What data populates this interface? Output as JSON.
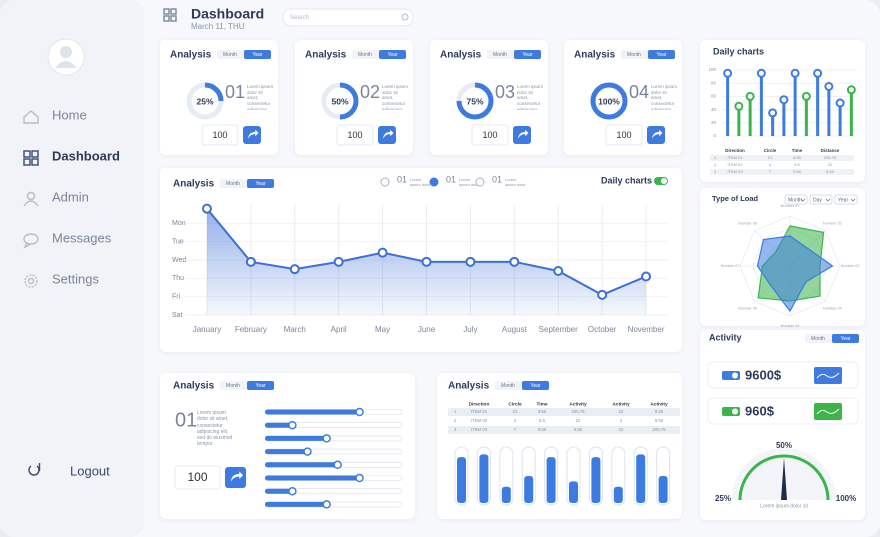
{
  "sidebar": {
    "menu": [
      "Home",
      "Dashboard",
      "Admin",
      "Messages",
      "Settings"
    ],
    "active": 1,
    "logout": "Logout"
  },
  "header": {
    "title": "Dashboard",
    "date": "March 11, THU",
    "search": "Search"
  },
  "analysis_cards": [
    {
      "title": "Analysis",
      "tabs": [
        "Month",
        "Year"
      ],
      "percent": 25,
      "percent_label": "25%",
      "number": "01",
      "text": "Lorem ipsum dolor sit amet, consectetur adipiscing elit, sed do",
      "button": "100"
    },
    {
      "title": "Analysis",
      "tabs": [
        "Month",
        "Year"
      ],
      "percent": 50,
      "percent_label": "50%",
      "number": "02",
      "text": "Lorem ipsum dolor sit amet, consectetur adipiscing elit, sed do",
      "button": "100"
    },
    {
      "title": "Analysis",
      "tabs": [
        "Month",
        "Year"
      ],
      "percent": 75,
      "percent_label": "75%",
      "number": "03",
      "text": "Lorem ipsum dolor sit amet, consectetur adipiscing elit, sed do",
      "button": "100"
    },
    {
      "title": "Analysis",
      "tabs": [
        "Month",
        "Year"
      ],
      "percent": 100,
      "percent_label": "100%",
      "number": "04",
      "text": "Lorem ipsum dolor sit amet, consectetur adipiscing elit, sed do",
      "button": "100"
    }
  ],
  "line_panel": {
    "title": "Analysis",
    "tabs": [
      "Month",
      "Year"
    ],
    "legend": [
      {
        "number": "01",
        "text": "Lorem ipsum dolor sit amet"
      },
      {
        "number": "01",
        "text": "Lorem ipsum dolor sit amet"
      },
      {
        "number": "01",
        "text": "Lorem ipsum dolor sit amet"
      }
    ],
    "legend_selected": 1,
    "toggle_label": "Daily charts",
    "toggle_on": true,
    "chart": {
      "type": "area",
      "categories": [
        "January",
        "February",
        "March",
        "April",
        "May",
        "June",
        "July",
        "August",
        "September",
        "October",
        "November"
      ],
      "values": [
        5.8,
        2.9,
        2.5,
        2.9,
        3.4,
        2.9,
        2.9,
        2.9,
        2.4,
        1.1,
        2.1
      ],
      "color": "#3d6fd6",
      "ylim": [
        0,
        6
      ],
      "yticks": [
        {
          "value": 5,
          "label": "Mon"
        },
        {
          "value": 4,
          "label": "Tue"
        },
        {
          "value": 3,
          "label": "Wed"
        },
        {
          "value": 2,
          "label": "Thu"
        },
        {
          "value": 1,
          "label": "Fri"
        },
        {
          "value": 0,
          "label": "Sat"
        }
      ],
      "grid": true
    }
  },
  "daily_charts": {
    "title": "Daily charts",
    "chart": {
      "type": "lollipop",
      "values": [
        95,
        45,
        60,
        95,
        35,
        55,
        95,
        60,
        95,
        75,
        50,
        70
      ],
      "colors": [
        "#3d7be0",
        "#3bb54a",
        "#3bb54a",
        "#3d7be0",
        "#3d7be0",
        "#3d7be0",
        "#3d7be0",
        "#3bb54a",
        "#3d7be0",
        "#3d7be0",
        "#3d7be0",
        "#3bb54a"
      ],
      "ylim": [
        0,
        100
      ],
      "yticks": [
        0,
        20,
        40,
        60,
        80,
        100
      ]
    },
    "table": {
      "columns": [
        "Direction",
        "Circle",
        "Time",
        "Distance"
      ],
      "rows": [
        [
          "1",
          "ITEM 01",
          "21",
          "8:36",
          "205.75"
        ],
        [
          "2",
          "ITEM 02",
          "4",
          "5.5",
          "22"
        ],
        [
          "3",
          "ITEM 03",
          "7",
          "9:56",
          "8.55"
        ]
      ]
    }
  },
  "type_of_load": {
    "title": "Type of Load",
    "selects": [
      "Month",
      "Day",
      "Year"
    ],
    "chart": {
      "type": "radar",
      "axes": [
        "Number 01",
        "Number 02",
        "Number 03",
        "Number 04",
        "Number 05",
        "Number 06",
        "Number 07",
        "Number 08"
      ],
      "rlim": [
        0,
        100
      ],
      "series": [
        {
          "color": "#3bb54a",
          "values": [
            80,
            95,
            60,
            85,
            70,
            90,
            55,
            40
          ]
        },
        {
          "color": "#3d7be0",
          "values": [
            60,
            50,
            85,
            45,
            90,
            55,
            65,
            75
          ]
        }
      ]
    }
  },
  "activity": {
    "title": "Activity",
    "tabs": [
      "Month",
      "Year"
    ],
    "stats": [
      {
        "value": "9600$",
        "color": "#3d7be0"
      },
      {
        "value": "960$",
        "color": "#3bb54a"
      }
    ],
    "gauge": {
      "type": "gauge",
      "value": 50,
      "value_label": "50%",
      "lim": [
        0,
        100
      ],
      "min_label": "25%",
      "max_label": "100%",
      "caption": "Lorem ipsum dolor sit",
      "color": "#3bb54a"
    }
  },
  "sliders_panel": {
    "title": "Analysis",
    "tabs": [
      "Month",
      "Year"
    ],
    "number": "01",
    "text": "Lorem ipsum dolor sit amet, consectetur adipiscing elit, sed do eiusmod tempor",
    "button": "100",
    "chart": {
      "type": "slider",
      "values": [
        69,
        20,
        45,
        31,
        53,
        69,
        20,
        45
      ],
      "xlim": [
        0,
        100
      ],
      "color": "#3d7be0"
    }
  },
  "table_panel": {
    "title": "Analysis",
    "tabs": [
      "Month",
      "Year"
    ],
    "table": {
      "columns": [
        "Direction",
        "Circle",
        "Time",
        "Activity",
        "Activity",
        "Activity"
      ],
      "rows": [
        [
          "1",
          "ITEM 01",
          "21",
          "9:56",
          "205.75",
          "22",
          "8.55"
        ],
        [
          "2",
          "ITEM 02",
          "4",
          "5.5",
          "22",
          "4",
          "8.55"
        ],
        [
          "3",
          "ITEM 03",
          "7",
          "9:56",
          "8.55",
          "22",
          "205.75"
        ]
      ]
    },
    "chart": {
      "type": "tube",
      "values": [
        85,
        90,
        30,
        50,
        85,
        40,
        85,
        30,
        90,
        50
      ],
      "ylim": [
        0,
        100
      ],
      "color": "#3d7be0"
    }
  }
}
